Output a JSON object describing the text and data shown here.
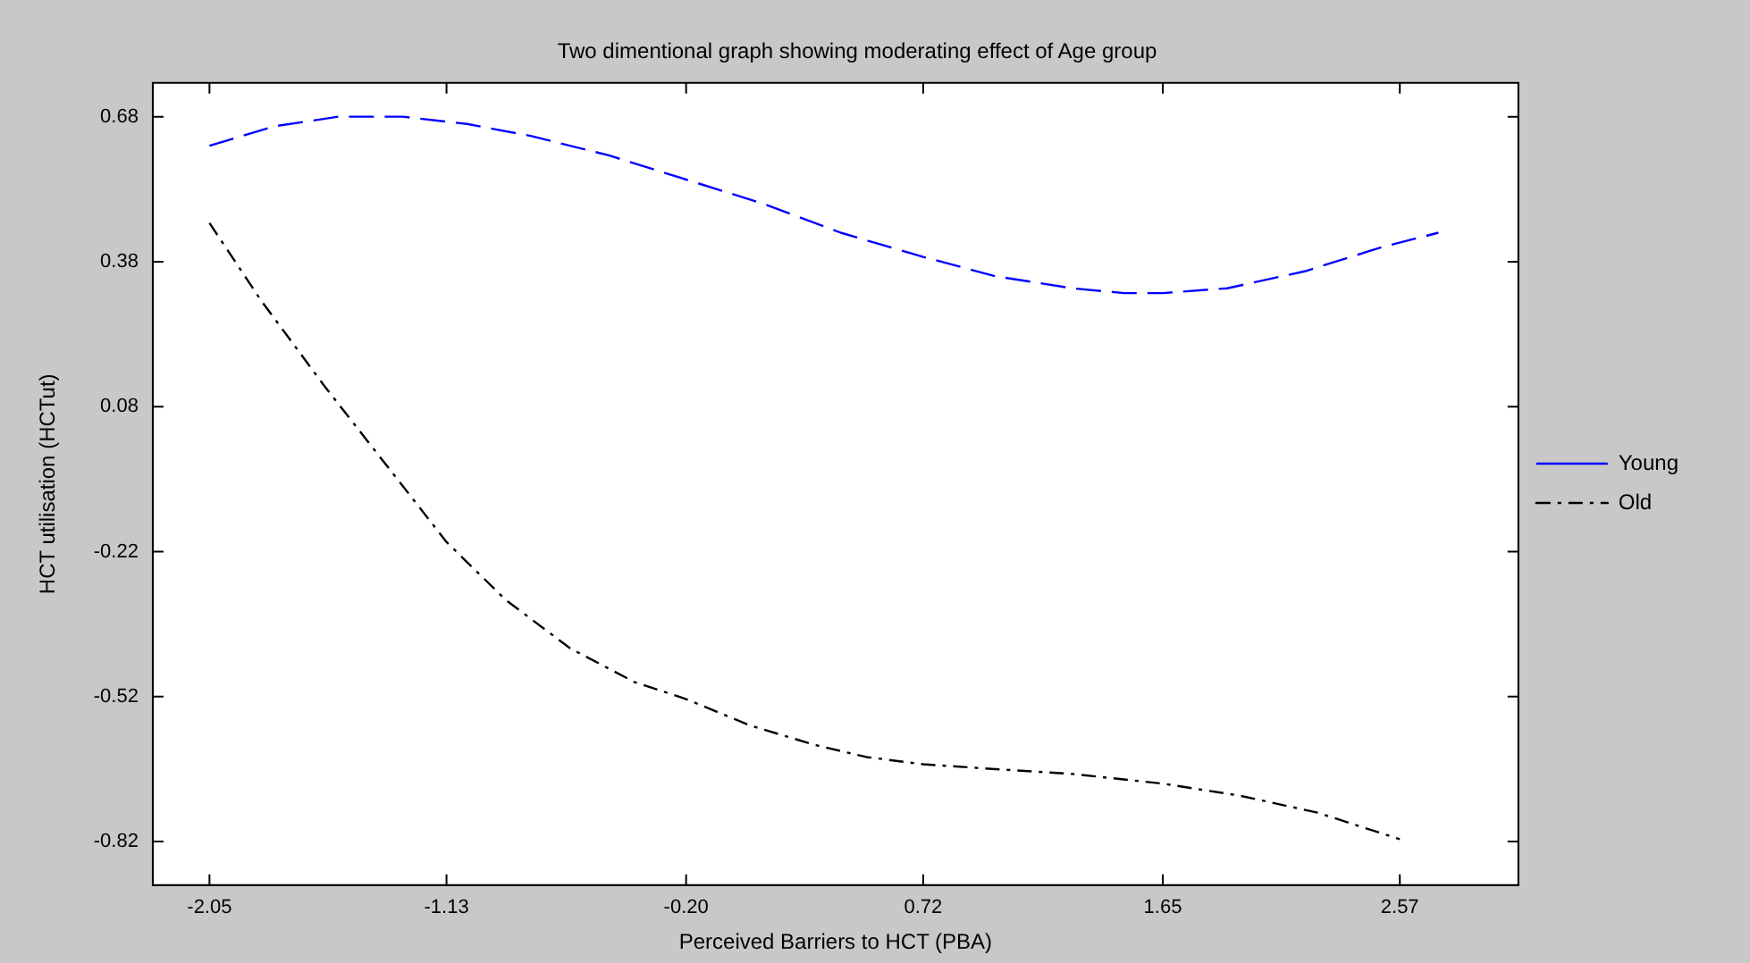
{
  "chart_data": {
    "type": "line",
    "title": "Two dimentional graph showing moderating effect of Age group",
    "xlabel": "Perceived Barriers to HCT (PBA)",
    "ylabel": "HCT utilisation (HCTut)",
    "xlim": [
      -2.27,
      3.03
    ],
    "xticks": [
      -2.05,
      -1.13,
      {
        "value": -0.2,
        "label": "-0.20"
      },
      0.72,
      1.65,
      2.57
    ],
    "ylim": [
      -0.91,
      0.75
    ],
    "yticks": [
      -0.82,
      -0.52,
      -0.22,
      0.08,
      0.38,
      0.68
    ],
    "grid": false,
    "legend": "right",
    "marker": "none",
    "series": [
      {
        "name": "Young",
        "color": "#0000ff",
        "line_style": "dashed",
        "x": [
          -2.05,
          -1.8,
          -1.55,
          -1.3,
          -1.05,
          -0.8,
          -0.5,
          -0.2,
          0.1,
          0.4,
          0.72,
          1.0,
          1.3,
          1.5,
          1.65,
          1.9,
          2.2,
          2.5,
          2.72
        ],
        "values": [
          0.62,
          0.66,
          0.68,
          0.68,
          0.665,
          0.64,
          0.6,
          0.55,
          0.5,
          0.44,
          0.39,
          0.35,
          0.325,
          0.315,
          0.315,
          0.325,
          0.36,
          0.41,
          0.44
        ]
      },
      {
        "name": "Old",
        "color": "#000000",
        "line_style": "dashdot",
        "x": [
          -2.05,
          -1.85,
          -1.6,
          -1.35,
          -1.13,
          -0.9,
          -0.65,
          -0.4,
          -0.2,
          0.05,
          0.3,
          0.5,
          0.72,
          1.0,
          1.3,
          1.65,
          1.95,
          2.25,
          2.57
        ],
        "values": [
          0.46,
          0.3,
          0.12,
          -0.05,
          -0.2,
          -0.32,
          -0.42,
          -0.49,
          -0.525,
          -0.58,
          -0.62,
          -0.645,
          -0.66,
          -0.67,
          -0.68,
          -0.7,
          -0.725,
          -0.76,
          -0.815
        ]
      }
    ]
  }
}
